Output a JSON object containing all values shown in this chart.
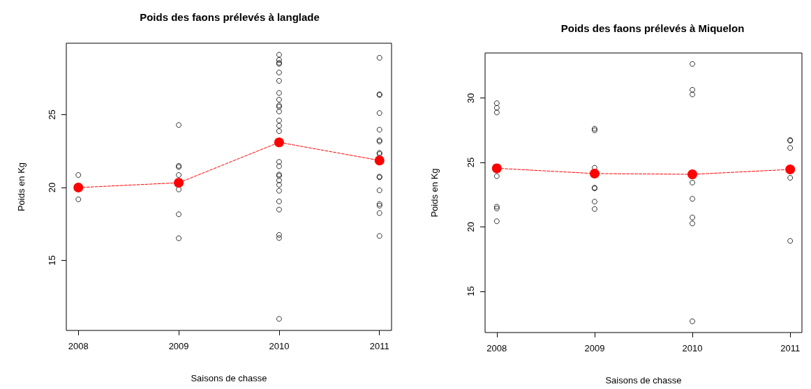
{
  "chart_data": [
    {
      "type": "scatter",
      "title": "Poids des faons prélevés à langlade",
      "xlabel": "Saisons de chasse",
      "ylabel": "Poids en Kg",
      "xlim": [
        2007.88,
        2011.12
      ],
      "xticks": [
        2008,
        2009,
        2010,
        2011
      ],
      "ylim": [
        10.2,
        29.9
      ],
      "yticks": [
        15,
        20,
        25
      ],
      "series": [
        {
          "color": "#000000",
          "marker": "circle",
          "x": [
            2008,
            2008,
            2009,
            2009,
            2009,
            2009,
            2009,
            2009,
            2009,
            2010,
            2010,
            2010,
            2010,
            2010,
            2010,
            2010,
            2010,
            2010,
            2010,
            2010,
            2010,
            2010,
            2010,
            2010,
            2010,
            2010,
            2010,
            2010,
            2010,
            2010,
            2010,
            2010,
            2010,
            2010,
            2010,
            2011,
            2011,
            2011,
            2011,
            2011,
            2011,
            2011,
            2011,
            2011,
            2011,
            2011,
            2011,
            2011,
            2011,
            2011,
            2011
          ],
          "values": [
            20.86,
            19.19,
            24.29,
            21.49,
            21.41,
            20.86,
            19.87,
            18.17,
            16.52,
            29.11,
            28.76,
            28.56,
            28.48,
            27.89,
            27.32,
            26.49,
            26.03,
            25.63,
            25.54,
            25.22,
            24.6,
            24.24,
            23.87,
            21.76,
            21.46,
            20.89,
            20.81,
            20.49,
            20.19,
            19.78,
            19.05,
            18.49,
            16.75,
            16.54,
            10.99,
            28.9,
            26.4,
            26.35,
            25.11,
            23.97,
            23.24,
            23.16,
            22.38,
            22.3,
            20.75,
            20.7,
            19.81,
            18.87,
            18.76,
            18.25,
            16.68
          ]
        },
        {
          "type": "line",
          "color": "#ff0000",
          "marker": "circle",
          "line_style": "dashed",
          "x": [
            2008,
            2009,
            2010,
            2011
          ],
          "values": [
            20.0,
            20.33,
            23.1,
            21.86
          ]
        }
      ]
    },
    {
      "type": "scatter",
      "title": "Poids des faons prélevés à Miquelon",
      "xlabel": "Saisons de chasse",
      "ylabel": "Poids en Kg",
      "xlim": [
        2007.88,
        2011.12
      ],
      "xticks": [
        2008,
        2009,
        2010,
        2011
      ],
      "ylim": [
        11.8,
        33.5
      ],
      "yticks": [
        15,
        20,
        25,
        30
      ],
      "series": [
        {
          "color": "#000000",
          "marker": "circle",
          "x": [
            2008,
            2008,
            2008,
            2008,
            2008,
            2008,
            2008,
            2009,
            2009,
            2009,
            2009,
            2009,
            2009,
            2009,
            2010,
            2010,
            2010,
            2010,
            2010,
            2010,
            2010,
            2010,
            2011,
            2011,
            2011,
            2011,
            2011
          ],
          "values": [
            29.6,
            29.24,
            28.88,
            23.94,
            21.57,
            21.43,
            20.44,
            27.62,
            27.5,
            24.59,
            23.04,
            22.99,
            21.96,
            21.39,
            32.65,
            30.64,
            30.28,
            23.44,
            22.18,
            20.73,
            20.27,
            12.67,
            26.74,
            26.69,
            26.13,
            23.81,
            18.91
          ]
        },
        {
          "type": "line",
          "color": "#ff0000",
          "marker": "circle",
          "line_style": "dashed",
          "x": [
            2008,
            2009,
            2010,
            2011
          ],
          "values": [
            24.55,
            24.14,
            24.08,
            24.46
          ]
        }
      ]
    }
  ]
}
